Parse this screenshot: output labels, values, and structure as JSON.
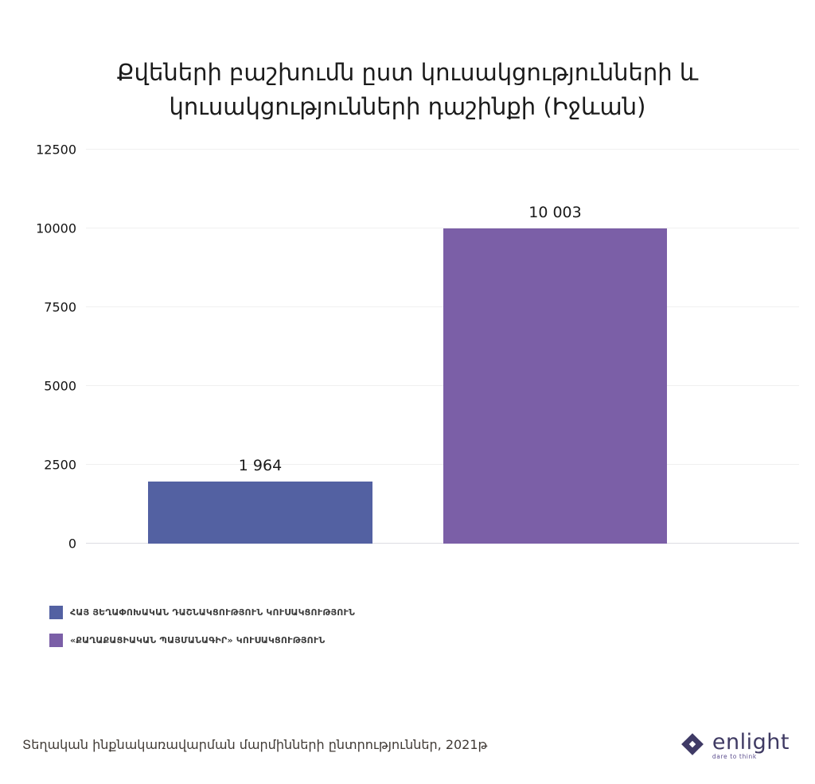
{
  "title": {
    "line1": "Քվեների բաշխումն ըստ կուսակցությունների և",
    "line2": "կուսակցությունների դաշինքի (Իջևան)"
  },
  "chart_data": {
    "type": "bar",
    "categories": [
      "ՀԱՅ ՅԵՂԱՓՈԽԱԿԱՆ ԴԱՇՆԱԿՑՈՒԹՅՈՒՆ ԿՈՒՍԱԿՑՈՒԹՅՈՒՆ",
      "«ՔԱՂԱՔԱՑԻԱԿԱՆ ՊԱՅՄԱՆԱԳԻՐ» ԿՈՒՍԱԿՑՈՒԹՅՈՒՆ"
    ],
    "values": [
      1964,
      10003
    ],
    "value_labels": [
      "1 964",
      "10 003"
    ],
    "bar_colors": [
      "#5361A2",
      "#7B5FA7"
    ],
    "title": "Քվեների բաշխումն ըստ կուսակցությունների և կուսակցությունների դաշինքի (Իջևան)",
    "xlabel": "",
    "ylabel": "",
    "ylim": [
      0,
      12500
    ],
    "yticks": [
      0,
      2500,
      5000,
      7500,
      10000,
      12500
    ],
    "grid": true,
    "legend_position": "bottom-left"
  },
  "source": {
    "text": "Տեղական ինքնակառավարման մարմինների ընտրություններ, 2021թ"
  },
  "logo": {
    "name": "enlight",
    "tagline": "dare to think",
    "color": "#3F3A66"
  }
}
